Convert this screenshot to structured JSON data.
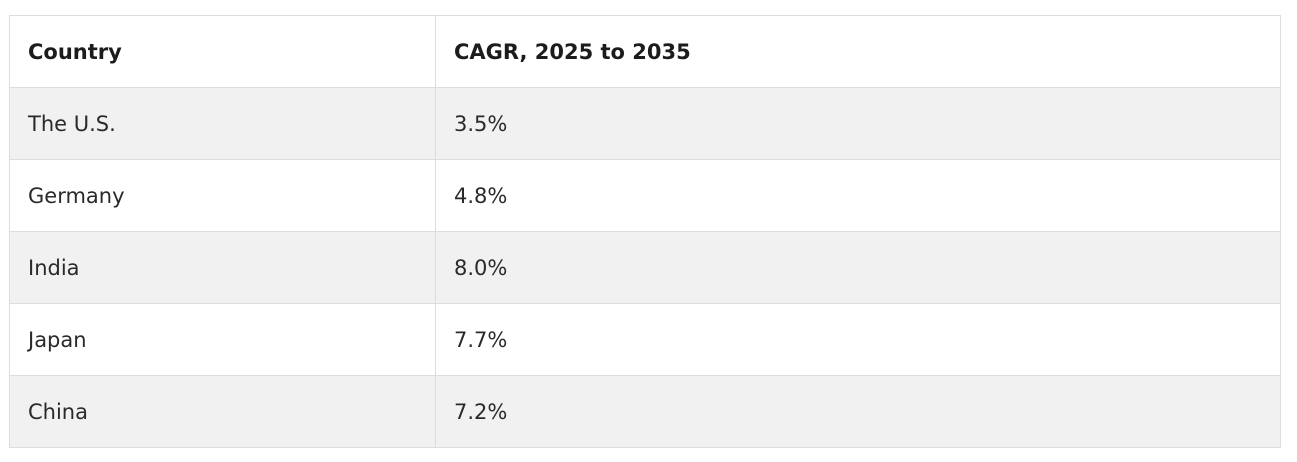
{
  "table": {
    "headers": [
      "Country",
      "CAGR, 2025 to 2035"
    ],
    "rows": [
      [
        "The U.S.",
        "3.5%"
      ],
      [
        "Germany",
        "4.8%"
      ],
      [
        "India",
        "8.0%"
      ],
      [
        "Japan",
        "7.7%"
      ],
      [
        "China",
        "7.2%"
      ]
    ]
  }
}
